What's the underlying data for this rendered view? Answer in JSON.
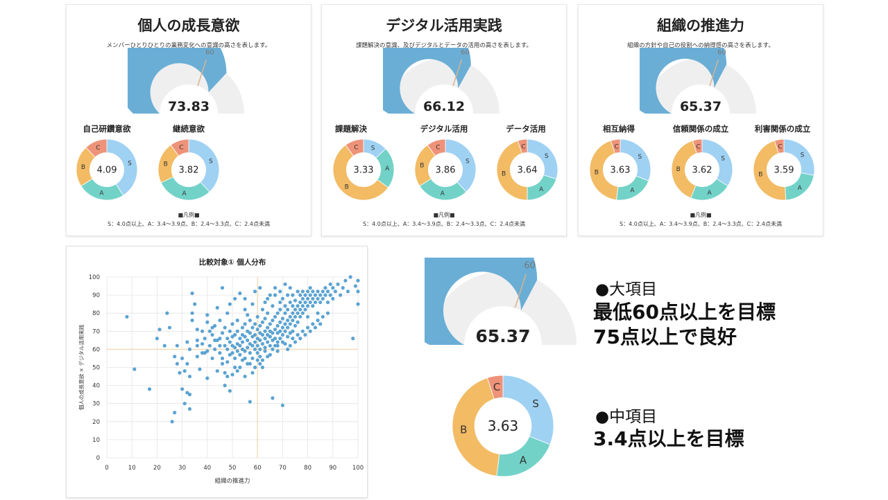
{
  "colors": {
    "gauge_fill": "#6aaed6",
    "gauge_bg": "#efefef",
    "target_line": "#d9b38c",
    "S": "#9fd1f3",
    "A": "#72d2c8",
    "B": "#f2bb64",
    "C": "#ee9379",
    "scatter_point": "#5ba3d2",
    "ref_line": "#f0d7b0"
  },
  "gauge_target_label": "60",
  "gauge_max": 100,
  "panels": [
    {
      "title": "個人の成長意欲",
      "description": "メンバーひとりひとりの業務変化への意識の高さを表します。",
      "score": "73.83",
      "score_value": 73.83,
      "subitems": [
        {
          "label": "自己研鑽意欲",
          "value": "4.09",
          "dist": {
            "S": 0.41,
            "A": 0.25,
            "B": 0.22,
            "C": 0.12
          }
        },
        {
          "label": "継続意欲",
          "value": "3.82",
          "dist": {
            "S": 0.38,
            "A": 0.3,
            "B": 0.22,
            "C": 0.1
          }
        }
      ],
      "legend_title": "■凡例■",
      "legend_text": "S：4.0点以上、A：3.4〜3.9点、B：2.4〜3.3点、C：2.4点未満"
    },
    {
      "title": "デジタル活用実践",
      "description": "課題解決の意識、及びデジタルとデータの活用の高さを表します。",
      "score": "66.12",
      "score_value": 66.12,
      "subitems": [
        {
          "label": "課題解決",
          "value": "3.33",
          "dist": {
            "S": 0.13,
            "A": 0.22,
            "B": 0.55,
            "C": 0.1
          }
        },
        {
          "label": "デジタル活用",
          "value": "3.86",
          "dist": {
            "S": 0.38,
            "A": 0.28,
            "B": 0.24,
            "C": 0.1
          }
        },
        {
          "label": "データ活用",
          "value": "3.64",
          "dist": {
            "S": 0.3,
            "A": 0.2,
            "B": 0.45,
            "C": 0.05
          }
        }
      ],
      "legend_title": "■凡例■",
      "legend_text": "S：4.0点以上、A：3.4〜3.9点、B：2.4〜3.3点、C：2.4点未満"
    },
    {
      "title": "組織の推進力",
      "description": "組織の方針や自己の役割への納得感の高さを表します。",
      "score": "65.37",
      "score_value": 65.37,
      "subitems": [
        {
          "label": "相互納得",
          "value": "3.63",
          "dist": {
            "S": 0.31,
            "A": 0.21,
            "B": 0.43,
            "C": 0.05
          }
        },
        {
          "label": "信頼関係の成立",
          "value": "3.62",
          "dist": {
            "S": 0.34,
            "A": 0.22,
            "B": 0.39,
            "C": 0.05
          }
        },
        {
          "label": "利害関係の成立",
          "value": "3.59",
          "dist": {
            "S": 0.28,
            "A": 0.21,
            "B": 0.46,
            "C": 0.05
          }
        }
      ],
      "legend_title": "■凡例■",
      "legend_text": "S：4.0点以上、A：3.4〜3.9点、B：2.4〜3.3点、C：2.4点未満"
    }
  ],
  "chart_data": {
    "type": "scatter",
    "title": "比較対象① 個人分布",
    "xlabel": "組織の推進力",
    "ylabel": "個人の成長意欲 × デジタル活用実践",
    "xlim": [
      0,
      100
    ],
    "ylim": [
      0,
      100
    ],
    "xticks": [
      0,
      10,
      20,
      30,
      40,
      50,
      60,
      70,
      80,
      90,
      100
    ],
    "yticks": [
      0,
      10,
      20,
      30,
      40,
      50,
      60,
      70,
      80,
      90,
      100
    ],
    "reference_lines": {
      "x": 60,
      "y": 60
    },
    "grid": true,
    "points": [
      [
        8,
        78
      ],
      [
        11,
        49
      ],
      [
        17,
        38
      ],
      [
        20,
        66
      ],
      [
        21,
        71
      ],
      [
        23,
        62
      ],
      [
        24,
        80
      ],
      [
        25,
        72
      ],
      [
        26,
        20
      ],
      [
        27,
        25
      ],
      [
        27,
        56
      ],
      [
        28,
        52
      ],
      [
        28,
        62
      ],
      [
        29,
        47
      ],
      [
        30,
        38
      ],
      [
        30,
        55
      ],
      [
        31,
        30
      ],
      [
        31,
        48
      ],
      [
        32,
        36
      ],
      [
        32,
        52
      ],
      [
        32,
        64
      ],
      [
        33,
        45
      ],
      [
        33,
        35
      ],
      [
        33,
        27
      ],
      [
        33,
        60
      ],
      [
        34,
        80
      ],
      [
        34,
        91
      ],
      [
        34,
        76
      ],
      [
        35,
        85
      ],
      [
        36,
        56
      ],
      [
        36,
        65
      ],
      [
        36,
        71
      ],
      [
        37,
        49
      ],
      [
        38,
        63
      ],
      [
        38,
        58
      ],
      [
        39,
        66
      ],
      [
        40,
        44
      ],
      [
        40,
        79
      ],
      [
        40,
        59
      ],
      [
        41,
        62
      ],
      [
        41,
        70
      ],
      [
        42,
        55
      ],
      [
        42,
        68
      ],
      [
        43,
        73
      ],
      [
        43,
        60
      ],
      [
        44,
        48
      ],
      [
        44,
        65
      ],
      [
        44,
        83
      ],
      [
        45,
        76
      ],
      [
        45,
        58
      ],
      [
        45,
        62
      ],
      [
        46,
        69
      ],
      [
        46,
        55
      ],
      [
        46,
        94
      ],
      [
        47,
        47
      ],
      [
        47,
        62
      ],
      [
        47,
        72
      ],
      [
        48,
        60
      ],
      [
        48,
        53
      ],
      [
        48,
        66
      ],
      [
        48,
        80
      ],
      [
        49,
        37
      ],
      [
        49,
        57
      ],
      [
        49,
        64
      ],
      [
        49,
        70
      ],
      [
        50,
        58
      ],
      [
        50,
        62
      ],
      [
        50,
        67
      ],
      [
        50,
        74
      ],
      [
        50,
        46
      ],
      [
        51,
        61
      ],
      [
        51,
        55
      ],
      [
        51,
        88
      ],
      [
        51,
        68
      ],
      [
        52,
        63
      ],
      [
        52,
        70
      ],
      [
        52,
        59
      ],
      [
        52,
        76
      ],
      [
        53,
        66
      ],
      [
        53,
        57
      ],
      [
        53,
        62
      ],
      [
        53,
        50
      ],
      [
        54,
        72
      ],
      [
        54,
        64
      ],
      [
        54,
        60
      ],
      [
        54,
        68
      ],
      [
        55,
        59
      ],
      [
        55,
        67
      ],
      [
        55,
        74
      ],
      [
        55,
        55
      ],
      [
        55,
        82
      ],
      [
        56,
        61
      ],
      [
        56,
        65
      ],
      [
        56,
        70
      ],
      [
        56,
        52
      ],
      [
        56,
        79
      ],
      [
        57,
        63
      ],
      [
        57,
        58
      ],
      [
        57,
        69
      ],
      [
        57,
        76
      ],
      [
        57,
        31
      ],
      [
        58,
        67
      ],
      [
        58,
        62
      ],
      [
        58,
        72
      ],
      [
        58,
        55
      ],
      [
        58,
        85
      ],
      [
        59,
        60
      ],
      [
        59,
        68
      ],
      [
        59,
        74
      ],
      [
        59,
        64
      ],
      [
        59,
        50
      ],
      [
        60,
        66
      ],
      [
        60,
        71
      ],
      [
        60,
        62
      ],
      [
        60,
        58
      ],
      [
        60,
        78
      ],
      [
        61,
        65
      ],
      [
        61,
        69
      ],
      [
        61,
        73
      ],
      [
        61,
        60
      ],
      [
        61,
        56
      ],
      [
        62,
        68
      ],
      [
        62,
        63
      ],
      [
        62,
        75
      ],
      [
        62,
        82
      ],
      [
        62,
        54
      ],
      [
        63,
        66
      ],
      [
        63,
        70
      ],
      [
        63,
        61
      ],
      [
        63,
        77
      ],
      [
        63,
        59
      ],
      [
        64,
        72
      ],
      [
        64,
        68
      ],
      [
        64,
        64
      ],
      [
        64,
        80
      ],
      [
        64,
        88
      ],
      [
        65,
        67
      ],
      [
        65,
        62
      ],
      [
        65,
        74
      ],
      [
        65,
        70
      ],
      [
        65,
        57
      ],
      [
        66,
        69
      ],
      [
        66,
        76
      ],
      [
        66,
        65
      ],
      [
        66,
        84
      ],
      [
        66,
        33
      ],
      [
        67,
        71
      ],
      [
        67,
        66
      ],
      [
        67,
        78
      ],
      [
        67,
        62
      ],
      [
        67,
        90
      ],
      [
        68,
        73
      ],
      [
        68,
        69
      ],
      [
        68,
        80
      ],
      [
        68,
        64
      ],
      [
        68,
        59
      ],
      [
        69,
        75
      ],
      [
        69,
        70
      ],
      [
        69,
        82
      ],
      [
        69,
        66
      ],
      [
        69,
        86
      ],
      [
        70,
        72
      ],
      [
        70,
        77
      ],
      [
        70,
        68
      ],
      [
        70,
        88
      ],
      [
        70,
        29
      ],
      [
        71,
        74
      ],
      [
        71,
        80
      ],
      [
        71,
        70
      ],
      [
        71,
        84
      ],
      [
        71,
        63
      ],
      [
        72,
        76
      ],
      [
        72,
        82
      ],
      [
        72,
        72
      ],
      [
        72,
        90
      ],
      [
        72,
        67
      ],
      [
        73,
        78
      ],
      [
        73,
        74
      ],
      [
        73,
        86
      ],
      [
        73,
        69
      ],
      [
        74,
        80
      ],
      [
        74,
        84
      ],
      [
        74,
        76
      ],
      [
        74,
        90
      ],
      [
        74,
        70
      ],
      [
        75,
        82
      ],
      [
        75,
        78
      ],
      [
        75,
        87
      ],
      [
        75,
        73
      ],
      [
        76,
        84
      ],
      [
        76,
        80
      ],
      [
        76,
        92
      ],
      [
        76,
        75
      ],
      [
        77,
        86
      ],
      [
        77,
        82
      ],
      [
        77,
        78
      ],
      [
        77,
        90
      ],
      [
        78,
        88
      ],
      [
        78,
        84
      ],
      [
        78,
        80
      ],
      [
        78,
        92
      ],
      [
        79,
        86
      ],
      [
        79,
        90
      ],
      [
        79,
        82
      ],
      [
        80,
        88
      ],
      [
        80,
        92
      ],
      [
        80,
        84
      ],
      [
        80,
        78
      ],
      [
        81,
        90
      ],
      [
        81,
        86
      ],
      [
        81,
        94
      ],
      [
        82,
        88
      ],
      [
        82,
        92
      ],
      [
        82,
        84
      ],
      [
        83,
        90
      ],
      [
        83,
        86
      ],
      [
        84,
        92
      ],
      [
        84,
        88
      ],
      [
        84,
        80
      ],
      [
        85,
        90
      ],
      [
        85,
        86
      ],
      [
        86,
        92
      ],
      [
        86,
        88
      ],
      [
        87,
        94
      ],
      [
        87,
        90
      ],
      [
        88,
        92
      ],
      [
        88,
        86
      ],
      [
        89,
        96
      ],
      [
        89,
        90
      ],
      [
        90,
        88
      ],
      [
        90,
        94
      ],
      [
        91,
        92
      ],
      [
        92,
        96
      ],
      [
        93,
        90
      ],
      [
        94,
        94
      ],
      [
        95,
        98
      ],
      [
        96,
        92
      ],
      [
        97,
        100
      ],
      [
        98,
        66
      ],
      [
        99,
        95
      ],
      [
        100,
        98
      ],
      [
        100,
        85
      ],
      [
        100,
        92
      ],
      [
        39,
        58
      ],
      [
        43,
        65
      ],
      [
        46,
        52
      ],
      [
        52,
        48
      ],
      [
        55,
        45
      ],
      [
        58,
        47
      ],
      [
        61,
        52
      ],
      [
        64,
        56
      ],
      [
        66,
        60
      ],
      [
        68,
        62
      ],
      [
        70,
        64
      ],
      [
        72,
        60
      ],
      [
        74,
        66
      ],
      [
        76,
        68
      ],
      [
        78,
        70
      ],
      [
        80,
        72
      ],
      [
        82,
        74
      ],
      [
        84,
        76
      ],
      [
        86,
        78
      ],
      [
        88,
        80
      ],
      [
        73,
        62
      ],
      [
        75,
        64
      ],
      [
        77,
        66
      ],
      [
        79,
        68
      ],
      [
        81,
        70
      ],
      [
        83,
        72
      ],
      [
        85,
        74
      ],
      [
        60,
        54
      ],
      [
        62,
        50
      ],
      [
        57,
        52
      ],
      [
        54,
        54
      ],
      [
        51,
        50
      ],
      [
        48,
        45
      ],
      [
        47,
        40
      ],
      [
        45,
        66
      ],
      [
        42,
        72
      ],
      [
        40,
        75
      ],
      [
        38,
        70
      ],
      [
        36,
        62
      ],
      [
        49,
        85
      ],
      [
        53,
        91
      ],
      [
        55,
        88
      ],
      [
        59,
        92
      ],
      [
        61,
        94
      ],
      [
        63,
        86
      ],
      [
        65,
        90
      ],
      [
        67,
        94
      ],
      [
        69,
        92
      ],
      [
        71,
        96
      ],
      [
        73,
        94
      ]
    ]
  },
  "featured_gauge": {
    "score": "65.37",
    "score_value": 65.37
  },
  "featured_donut": {
    "value": "3.63",
    "dist": {
      "S": 0.31,
      "A": 0.21,
      "B": 0.43,
      "C": 0.05
    }
  },
  "labels": {
    "S": "S",
    "A": "A",
    "B": "B",
    "C": "C"
  },
  "notes": {
    "major_heading": "●大項目",
    "major_line1": "最低60点以上を目標",
    "major_line2": "75点以上で良好",
    "mid_heading": "●中項目",
    "mid_line1": "3.4点以上を目標"
  }
}
